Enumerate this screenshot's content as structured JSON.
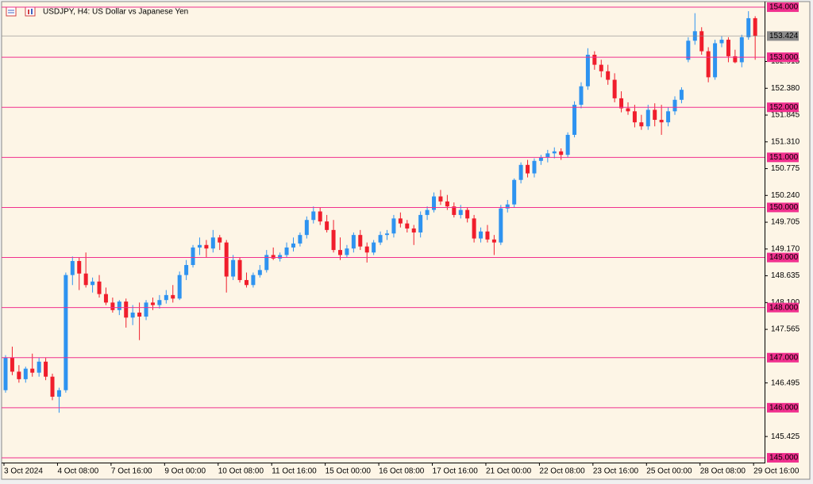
{
  "chart_data": {
    "type": "candlestick",
    "title": "USDJPY, H4:  US Dollar vs Japanese Yen",
    "categories": [
      "3 Oct 2024",
      null,
      null,
      null,
      null,
      null,
      null,
      null,
      "4 Oct 08:00",
      null,
      null,
      null,
      null,
      null,
      null,
      null,
      "7 Oct 16:00",
      null,
      null,
      null,
      null,
      null,
      null,
      null,
      "9 Oct 00:00",
      null,
      null,
      null,
      null,
      null,
      null,
      null,
      "10 Oct 08:00",
      null,
      null,
      null,
      null,
      null,
      null,
      null,
      "11 Oct 16:00",
      null,
      null,
      null,
      null,
      null,
      null,
      null,
      "15 Oct 00:00",
      null,
      null,
      null,
      null,
      null,
      null,
      null,
      "16 Oct 08:00",
      null,
      null,
      null,
      null,
      null,
      null,
      null,
      "17 Oct 16:00",
      null,
      null,
      null,
      null,
      null,
      null,
      null,
      "21 Oct 00:00",
      null,
      null,
      null,
      null,
      null,
      null,
      null,
      "22 Oct 08:00",
      null,
      null,
      null,
      null,
      null,
      null,
      null,
      "23 Oct 16:00",
      null,
      null,
      null,
      null,
      null,
      null,
      null,
      "25 Oct 00:00",
      null,
      null,
      null,
      null,
      null,
      null,
      null,
      "28 Oct 08:00",
      null,
      null,
      null,
      null,
      null,
      null,
      null,
      "29 Oct 16:00"
    ],
    "open": [
      146.35,
      147.0,
      146.72,
      146.57,
      146.78,
      146.7,
      146.92,
      146.62,
      146.22,
      146.35,
      148.65,
      148.93,
      148.68,
      148.45,
      148.52,
      148.27,
      148.1,
      147.95,
      148.12,
      147.8,
      147.9,
      147.82,
      148.1,
      148.05,
      148.15,
      148.25,
      148.18,
      148.65,
      148.85,
      149.2,
      149.25,
      149.18,
      149.4,
      149.3,
      148.62,
      148.95,
      148.55,
      148.45,
      148.65,
      148.75,
      149.05,
      148.98,
      149.05,
      149.2,
      149.28,
      149.45,
      149.75,
      149.92,
      149.72,
      149.55,
      149.15,
      149.05,
      149.18,
      149.45,
      149.22,
      149.1,
      149.3,
      149.45,
      149.48,
      149.78,
      149.68,
      149.58,
      149.5,
      149.85,
      149.95,
      150.22,
      150.12,
      150.02,
      149.85,
      149.95,
      149.78,
      149.38,
      149.52,
      149.36,
      149.3,
      149.98,
      150.06,
      150.55,
      150.85,
      150.68,
      150.93,
      151.0,
      151.08,
      151.12,
      151.05,
      151.45,
      152.05,
      152.42,
      153.05,
      152.85,
      152.72,
      152.55,
      152.18,
      151.98,
      151.92,
      151.7,
      151.62,
      151.95,
      151.75,
      151.7,
      151.92,
      152.15,
      152.95,
      153.33,
      153.52,
      153.12,
      152.6,
      153.28,
      153.35,
      153.02,
      152.9,
      153.4,
      153.78
    ],
    "high": [
      147.05,
      147.22,
      146.85,
      146.82,
      147.08,
      147.0,
      147.0,
      146.68,
      146.4,
      148.7,
      149.02,
      149.0,
      149.1,
      148.6,
      148.65,
      148.4,
      148.2,
      148.15,
      148.18,
      148.05,
      148.1,
      148.15,
      148.2,
      148.25,
      148.35,
      148.45,
      148.72,
      148.95,
      149.25,
      149.4,
      149.35,
      149.55,
      149.45,
      149.35,
      149.05,
      149.0,
      148.7,
      148.7,
      148.85,
      149.15,
      149.2,
      149.1,
      149.3,
      149.4,
      149.5,
      149.82,
      150.02,
      150.0,
      149.85,
      149.75,
      149.4,
      149.25,
      149.5,
      149.55,
      149.3,
      149.35,
      149.52,
      149.55,
      149.85,
      149.9,
      149.75,
      149.65,
      149.92,
      150.02,
      150.3,
      150.35,
      150.25,
      150.1,
      150.05,
      150.0,
      149.85,
      149.6,
      149.65,
      149.45,
      150.05,
      150.15,
      150.58,
      150.9,
      150.95,
      150.98,
      151.05,
      151.15,
      151.2,
      151.18,
      151.5,
      152.12,
      152.5,
      153.18,
      153.12,
      152.95,
      152.85,
      152.68,
      152.32,
      152.1,
      152.05,
      151.85,
      152.05,
      152.08,
      152.05,
      152.0,
      152.22,
      152.4,
      153.4,
      153.88,
      153.6,
      153.2,
      153.35,
      153.42,
      153.4,
      153.15,
      153.45,
      153.92,
      153.82
    ],
    "low": [
      146.3,
      146.65,
      146.5,
      146.5,
      146.62,
      146.62,
      146.55,
      146.15,
      145.9,
      146.3,
      148.45,
      148.35,
      148.4,
      148.3,
      148.2,
      148.05,
      147.9,
      147.85,
      147.6,
      147.65,
      147.35,
      147.75,
      147.95,
      147.98,
      148.08,
      148.1,
      148.15,
      148.55,
      148.8,
      149.05,
      149.0,
      149.1,
      149.15,
      148.3,
      148.55,
      148.5,
      148.4,
      148.4,
      148.6,
      148.7,
      148.95,
      148.92,
      149.0,
      149.12,
      149.22,
      149.38,
      149.68,
      149.65,
      149.5,
      149.1,
      148.95,
      149.0,
      149.1,
      149.15,
      148.9,
      149.05,
      149.25,
      149.35,
      149.4,
      149.6,
      149.5,
      149.25,
      149.4,
      149.75,
      149.9,
      150.05,
      149.95,
      149.8,
      149.78,
      149.7,
      149.3,
      149.3,
      149.3,
      149.05,
      149.25,
      149.9,
      150.0,
      150.48,
      150.6,
      150.6,
      150.85,
      150.9,
      150.98,
      150.95,
      151.0,
      151.4,
      151.98,
      152.35,
      152.75,
      152.6,
      152.45,
      152.1,
      151.9,
      151.85,
      151.6,
      151.55,
      151.55,
      151.62,
      151.45,
      151.62,
      151.85,
      152.08,
      152.9,
      153.25,
      153.05,
      152.5,
      152.55,
      153.2,
      152.9,
      152.88,
      152.8,
      153.35,
      152.95
    ],
    "close": [
      147.0,
      146.72,
      146.57,
      146.78,
      146.7,
      146.92,
      146.62,
      146.22,
      146.35,
      148.65,
      148.93,
      148.68,
      148.45,
      148.52,
      148.27,
      148.1,
      147.95,
      148.12,
      147.8,
      147.9,
      147.82,
      148.1,
      148.05,
      148.15,
      148.25,
      148.18,
      148.65,
      148.85,
      149.2,
      149.25,
      149.18,
      149.4,
      149.3,
      148.62,
      148.95,
      148.55,
      148.45,
      148.65,
      148.75,
      149.05,
      148.98,
      149.05,
      149.2,
      149.28,
      149.45,
      149.75,
      149.92,
      149.72,
      149.55,
      149.15,
      149.05,
      149.18,
      149.45,
      149.22,
      149.1,
      149.3,
      149.45,
      149.48,
      149.78,
      149.68,
      149.58,
      149.5,
      149.85,
      149.95,
      150.22,
      150.12,
      150.02,
      149.85,
      149.95,
      149.78,
      149.38,
      149.52,
      149.36,
      149.3,
      149.98,
      150.06,
      150.55,
      150.85,
      150.68,
      150.93,
      151.0,
      151.08,
      151.12,
      151.05,
      151.45,
      152.05,
      152.42,
      153.05,
      152.85,
      152.72,
      152.55,
      152.18,
      151.98,
      151.92,
      151.7,
      151.62,
      151.95,
      151.75,
      151.7,
      151.92,
      152.15,
      152.35,
      153.33,
      153.52,
      153.12,
      152.6,
      153.28,
      153.35,
      153.02,
      152.9,
      153.4,
      153.78,
      153.424
    ],
    "up_color": "#2e93f0",
    "down_color": "#f01e2c",
    "ylim": [
      144.92,
      154.08
    ],
    "yticks": [
      {
        "value": 152.915,
        "label": "152.915"
      },
      {
        "value": 152.38,
        "label": "152.380"
      },
      {
        "value": 151.845,
        "label": "151.845"
      },
      {
        "value": 151.31,
        "label": "151.310"
      },
      {
        "value": 150.775,
        "label": "150.775"
      },
      {
        "value": 150.24,
        "label": "150.240"
      },
      {
        "value": 149.705,
        "label": "149.705"
      },
      {
        "value": 149.17,
        "label": "149.170"
      },
      {
        "value": 148.635,
        "label": "148.635"
      },
      {
        "value": 148.1,
        "label": "148.100"
      },
      {
        "value": 147.565,
        "label": "147.565"
      },
      {
        "value": 146.495,
        "label": "146.495"
      },
      {
        "value": 145.425,
        "label": "145.425"
      }
    ],
    "levels": [
      {
        "value": 154,
        "label": "154.000"
      },
      {
        "value": 153,
        "label": "153.000"
      },
      {
        "value": 152,
        "label": "152.000"
      },
      {
        "value": 151,
        "label": "151.000"
      },
      {
        "value": 150,
        "label": "150.000"
      },
      {
        "value": 149,
        "label": "149.000"
      },
      {
        "value": 148,
        "label": "148.000"
      },
      {
        "value": 147,
        "label": "147.000"
      },
      {
        "value": 146,
        "label": "146.000"
      },
      {
        "value": 145,
        "label": "145.000"
      }
    ],
    "level_color": "#f0308e",
    "current_price": {
      "value": 153.424,
      "label": "153.424"
    },
    "current_price_color": "#8a8a8a"
  }
}
